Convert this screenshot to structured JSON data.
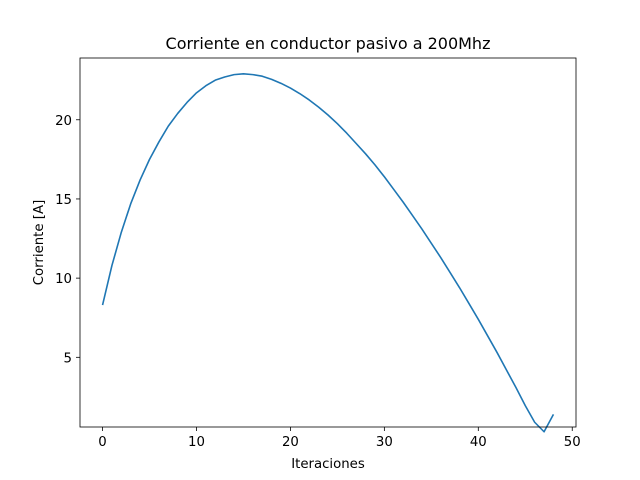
{
  "chart_data": {
    "type": "line",
    "title": "Corriente en conductor pasivo a 200Mhz",
    "xlabel": "Iteraciones",
    "ylabel": "Corriente [A]",
    "xlim": [
      -2.4,
      50.4
    ],
    "ylim": [
      0.6,
      23.9
    ],
    "x_ticks": [
      0,
      10,
      20,
      30,
      40,
      50
    ],
    "y_ticks": [
      5,
      10,
      15,
      20
    ],
    "grid": false,
    "legend": "none",
    "line_color": "#1f77b4",
    "series": [
      {
        "x": [
          0,
          1,
          2,
          3,
          4,
          5,
          6,
          7,
          8,
          9,
          10,
          11,
          12,
          13,
          14,
          15,
          16,
          17,
          18,
          19,
          20,
          21,
          22,
          23,
          24,
          25,
          26,
          27,
          28,
          29,
          30,
          31,
          32,
          33,
          34,
          35,
          36,
          37,
          38,
          39,
          40,
          41,
          42,
          43,
          44,
          45,
          46,
          47,
          48
        ],
        "values": [
          8.3,
          10.8,
          12.9,
          14.7,
          16.2,
          17.5,
          18.6,
          19.6,
          20.4,
          21.1,
          21.7,
          22.15,
          22.5,
          22.7,
          22.85,
          22.9,
          22.85,
          22.75,
          22.55,
          22.3,
          22.0,
          21.65,
          21.25,
          20.8,
          20.3,
          19.75,
          19.15,
          18.5,
          17.85,
          17.15,
          16.4,
          15.6,
          14.8,
          13.95,
          13.1,
          12.2,
          11.3,
          10.35,
          9.4,
          8.4,
          7.4,
          6.35,
          5.3,
          4.2,
          3.1,
          1.95,
          0.9,
          0.3,
          1.4
        ]
      }
    ]
  }
}
